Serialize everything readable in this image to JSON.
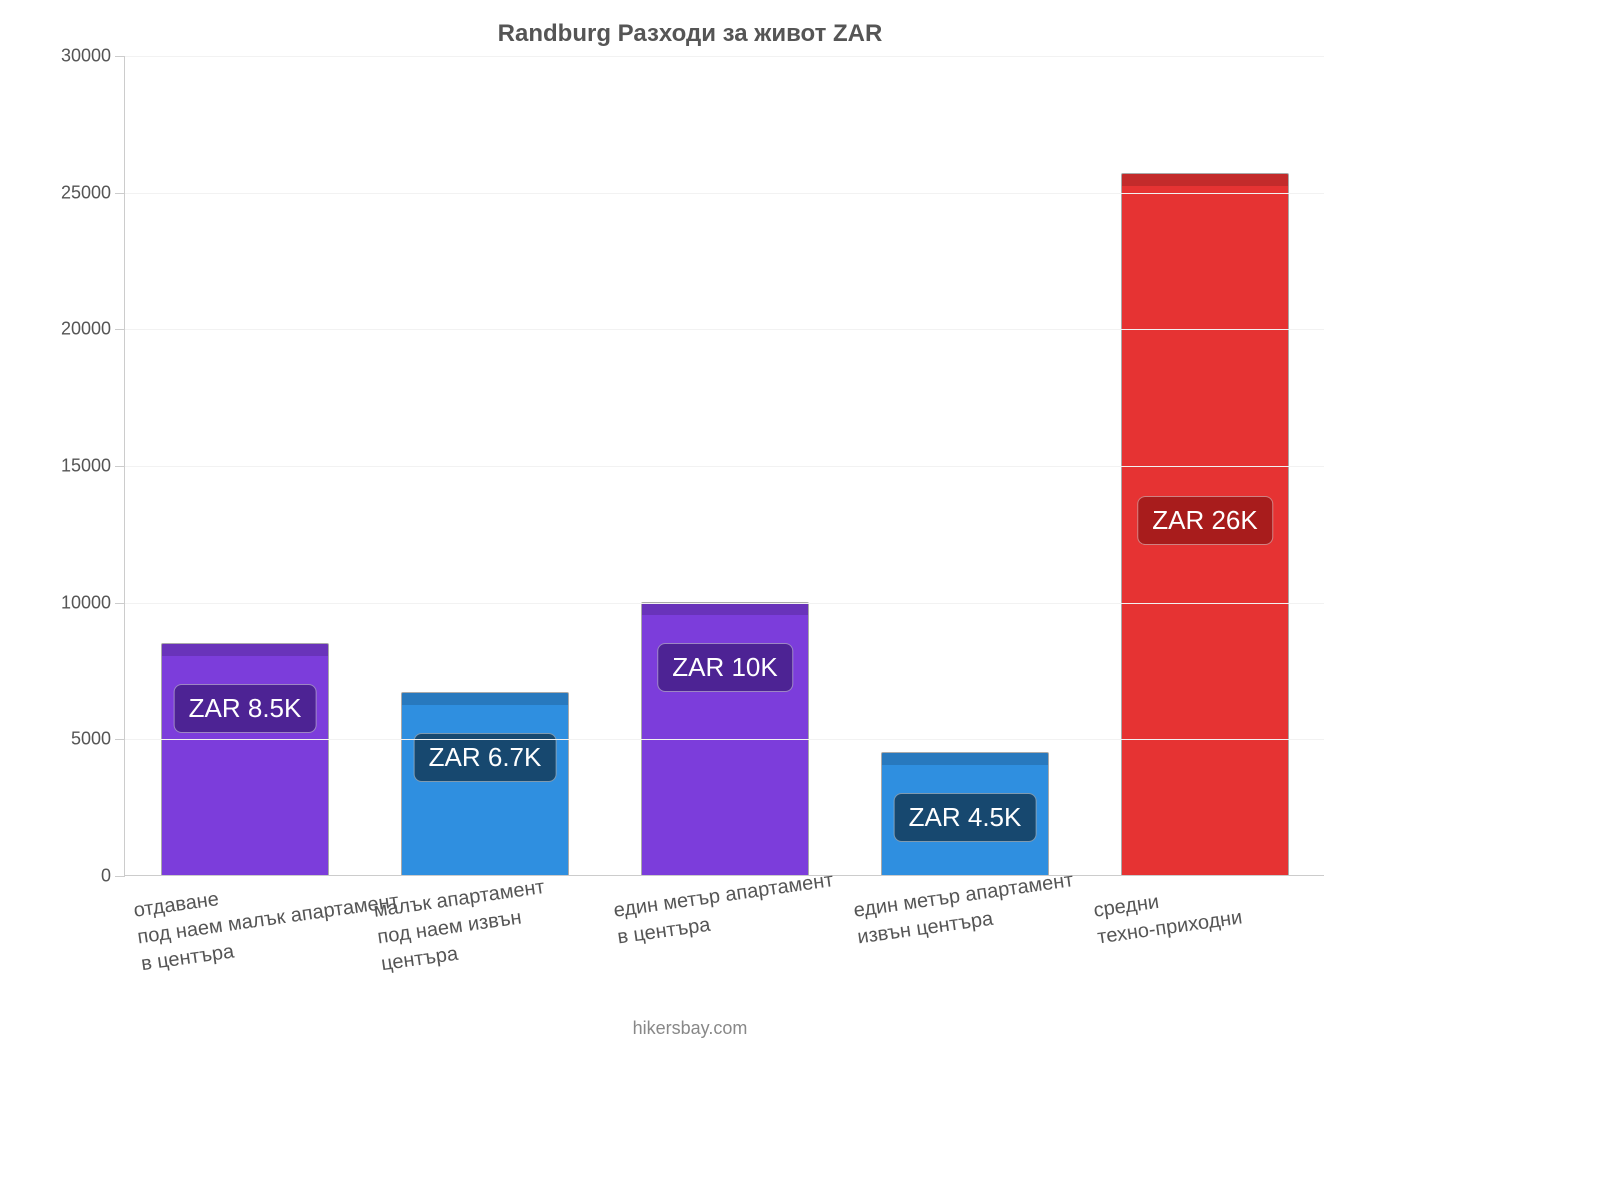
{
  "chart": {
    "type": "bar",
    "title": "Randburg Разходи за живот ZAR",
    "title_fontsize": 24,
    "title_color": "#555555",
    "background_color": "#ffffff",
    "plot_border_color": "#cccccc",
    "grid_color": "#f2f2f2",
    "ylim_min": 0,
    "ylim_max": 30000,
    "ytick_step": 5000,
    "yticks": [
      {
        "v": 0,
        "label": "0"
      },
      {
        "v": 5000,
        "label": "5000"
      },
      {
        "v": 10000,
        "label": "10000"
      },
      {
        "v": 15000,
        "label": "15000"
      },
      {
        "v": 20000,
        "label": "20000"
      },
      {
        "v": 25000,
        "label": "25000"
      },
      {
        "v": 30000,
        "label": "30000"
      }
    ],
    "ylabel_color": "#555555",
    "ylabel_fontsize": 18,
    "xlabel_color": "#555555",
    "xlabel_fontsize": 20,
    "xlabel_rotation_deg": -8,
    "bar_width_pct": 14,
    "bar_gap_pct": 6,
    "badge_fontsize": 26,
    "categories": [
      {
        "lines": [
          "отдаване",
          "под наем малък апартамент",
          "в центъра"
        ],
        "value": 8500,
        "bar_color": "#7c3ddb",
        "badge_color": "#4d2394",
        "badge_text": "ZAR 8.5K"
      },
      {
        "lines": [
          "малък апартамент",
          "под наем извън",
          "центъра"
        ],
        "value": 6700,
        "bar_color": "#2f8fe0",
        "badge_color": "#17486f",
        "badge_text": "ZAR 6.7K"
      },
      {
        "lines": [
          "един метър апартамент",
          "в центъра"
        ],
        "value": 10000,
        "bar_color": "#7c3ddb",
        "badge_color": "#4d2394",
        "badge_text": "ZAR 10K"
      },
      {
        "lines": [
          "един метър апартамент",
          "извън центъра"
        ],
        "value": 4500,
        "bar_color": "#2f8fe0",
        "badge_color": "#17486f",
        "badge_text": "ZAR 4.5K"
      },
      {
        "lines": [
          "средни",
          "техно-приходни"
        ],
        "value": 25700,
        "bar_color": "#e63333",
        "badge_color": "#a81c1c",
        "badge_text": "ZAR 26K"
      }
    ],
    "footer": "hikersbay.com",
    "footer_color": "#888888",
    "footer_fontsize": 18
  }
}
